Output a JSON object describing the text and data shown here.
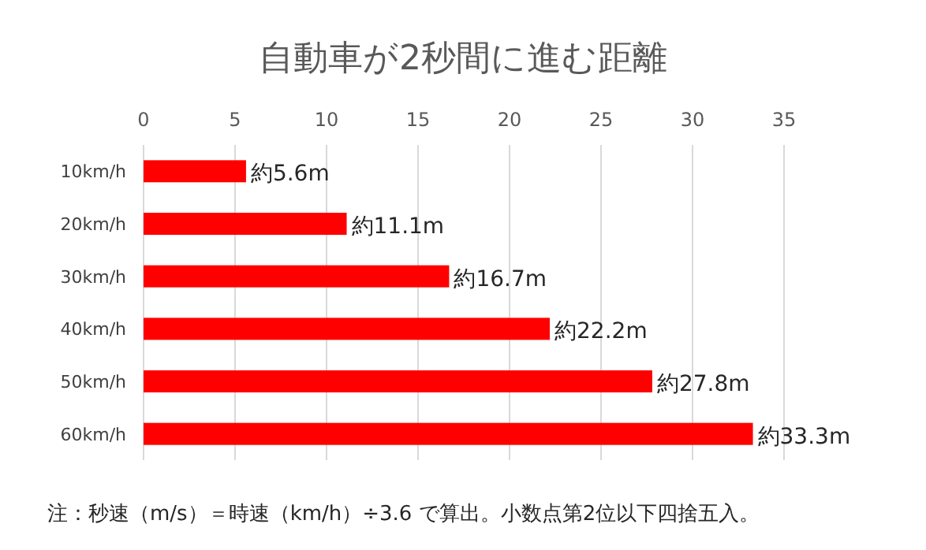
{
  "chart_data": {
    "type": "bar",
    "orientation": "horizontal",
    "title": "自動車が2秒間に進む距離",
    "categories": [
      "10km/h",
      "20km/h",
      "30km/h",
      "40km/h",
      "50km/h",
      "60km/h"
    ],
    "values": [
      5.6,
      11.1,
      16.7,
      22.2,
      27.8,
      33.3
    ],
    "value_labels": [
      "約5.6m",
      "約11.1m",
      "約16.7m",
      "約22.2m",
      "約27.8m",
      "約33.3m"
    ],
    "color": "#ff0000",
    "xlim": [
      0,
      35
    ],
    "xticks": [
      0,
      5,
      10,
      15,
      20,
      25,
      30,
      35
    ],
    "grid": "x",
    "annotations": [
      "注：秒速（m/s）＝時速（km/h）÷3.6 で算出。小数点第2位以下四捨五入。"
    ]
  }
}
